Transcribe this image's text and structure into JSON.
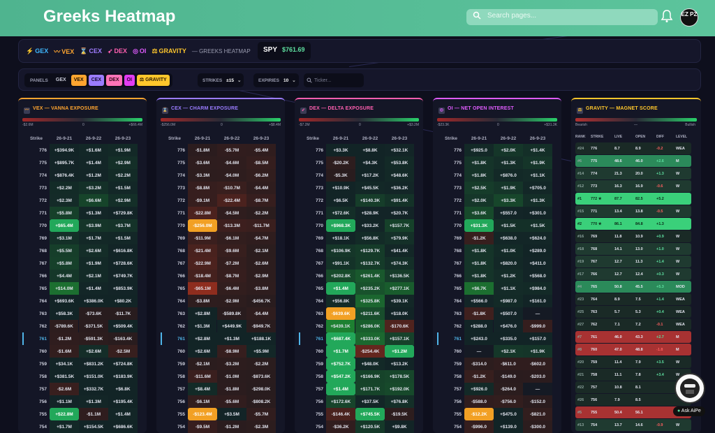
{
  "header": {
    "title": "Greeks Heatmap",
    "search_placeholder": "Search pages...",
    "avatar": "EZ PZ"
  },
  "strip": {
    "chips": [
      {
        "icon": "⚡",
        "label": "GEX",
        "color": "#3fb8ff"
      },
      {
        "icon": "〰",
        "label": "VEX",
        "color": "#ffa530"
      },
      {
        "icon": "⌛",
        "label": "CEX",
        "color": "#a07cff"
      },
      {
        "icon": "➶",
        "label": "DEX",
        "color": "#ff5fb0"
      },
      {
        "icon": "◎",
        "label": "OI",
        "color": "#e05cff"
      },
      {
        "icon": "⚖",
        "label": "GRAVITY",
        "color": "#ffc72c"
      }
    ],
    "suffix": "— GREEKS HEATMAP",
    "ticker": "SPY",
    "price": "$761.69"
  },
  "controls": {
    "panels_label": "PANELS",
    "panel_buttons": [
      {
        "label": "GEX",
        "bg": "transparent",
        "fg": "#c8cad8"
      },
      {
        "label": "VEX",
        "bg": "#ffa530",
        "fg": "#1a1200"
      },
      {
        "label": "CEX",
        "bg": "#9b7cff",
        "fg": "#120a2a"
      },
      {
        "label": "DEX",
        "bg": "#ff74b8",
        "fg": "#2a0818"
      },
      {
        "label": "OI",
        "bg": "#e23cf2",
        "fg": "#2a0030"
      },
      {
        "label": "⚖ GRAVITY",
        "bg": "#ffc72c",
        "fg": "#2a1c00"
      }
    ],
    "strikes_label": "STRIKES",
    "strikes_value": "±15",
    "expiries_label": "EXPIRIES",
    "expiries_value": "10",
    "ticker_placeholder": "Ticker..."
  },
  "strikes": [
    "776",
    "775",
    "774",
    "773",
    "772",
    "771",
    "770",
    "769",
    "768",
    "767",
    "766",
    "765",
    "764",
    "763",
    "762",
    "761",
    "760",
    "759",
    "758",
    "757",
    "756",
    "755",
    "754"
  ],
  "current_strike": "761",
  "panels": [
    {
      "title": "VEX — VANNA EXPOSURE",
      "accent": "#ffa530",
      "icon": "〰",
      "scale": [
        "-$2.6M",
        "0",
        "+$66.4M"
      ],
      "headers": [
        "Strike",
        "26-9-21",
        "26-9-22",
        "26-9-23"
      ],
      "rows": [
        [
          "+$394.9K",
          "+$1.6M",
          "+$1.9M"
        ],
        [
          "+$895.7K",
          "+$1.4M",
          "+$2.9M"
        ],
        [
          "+$876.4K",
          "+$1.2M",
          "+$2.2M"
        ],
        [
          "+$2.2M",
          "+$3.2M",
          "+$1.5M"
        ],
        [
          "+$2.3M",
          "+$6.6M",
          "+$2.9M"
        ],
        [
          "+$5.8M",
          "+$1.3M",
          "+$729.8K"
        ],
        [
          "+$65.4M",
          "+$3.9M",
          "+$3.7M"
        ],
        [
          "+$3.1M",
          "+$1.7M",
          "+$1.5M"
        ],
        [
          "+$5.5M",
          "+$2.6M",
          "+$616.8K"
        ],
        [
          "+$5.8M",
          "+$1.9M",
          "+$728.6K"
        ],
        [
          "+$4.4M",
          "+$2.1M",
          "+$749.7K"
        ],
        [
          "+$14.0M",
          "+$1.4M",
          "+$853.9K"
        ],
        [
          "+$693.6K",
          "+$386.0K",
          "+$80.2K"
        ],
        [
          "+$58.3K",
          "-$73.6K",
          "-$11.7K"
        ],
        [
          "-$789.6K",
          "-$371.5K",
          "+$509.4K"
        ],
        [
          "-$1.2M",
          "-$591.3K",
          "-$163.4K"
        ],
        [
          "-$1.6M",
          "+$2.6M",
          "-$2.5M"
        ],
        [
          "+$34.1K",
          "+$831.2K",
          "+$724.8K"
        ],
        [
          "+$381.5K",
          "+$151.0K",
          "+$183.9K"
        ],
        [
          "-$2.6M",
          "+$332.7K",
          "+$6.8K"
        ],
        [
          "+$1.1M",
          "+$1.3M",
          "+$195.4K"
        ],
        [
          "+$22.8M",
          "-$1.1M",
          "+$1.4M"
        ],
        [
          "+$1.7M",
          "+$154.5K",
          "+$686.6K"
        ]
      ]
    },
    {
      "title": "CEX — CHARM EXPOSURE",
      "accent": "#9b7cff",
      "icon": "⌛",
      "scale": [
        "-$256.0M",
        "0",
        "+$8.4M"
      ],
      "headers": [
        "Strike",
        "26-9-21",
        "26-9-22",
        "26-9-23"
      ],
      "rows": [
        [
          "-$1.8M",
          "-$5.7M",
          "-$5.4M"
        ],
        [
          "-$3.6M",
          "-$4.6M",
          "-$8.5M"
        ],
        [
          "-$3.3M",
          "-$4.0M",
          "-$6.2M"
        ],
        [
          "-$8.8M",
          "-$10.7M",
          "-$4.4M"
        ],
        [
          "-$9.1M",
          "-$22.4M",
          "-$8.7M"
        ],
        [
          "-$22.8M",
          "-$4.5M",
          "-$2.2M"
        ],
        [
          "-$256.0M",
          "-$13.3M",
          "-$11.7M"
        ],
        [
          "-$11.9M",
          "-$6.1M",
          "-$4.7M"
        ],
        [
          "-$21.4M",
          "-$9.6M",
          "-$2.1M"
        ],
        [
          "-$22.9M",
          "-$7.2M",
          "-$2.6M"
        ],
        [
          "-$18.4M",
          "-$8.7M",
          "-$2.9M"
        ],
        [
          "-$65.1M",
          "-$6.4M",
          "-$3.8M"
        ],
        [
          "-$3.8M",
          "-$2.9M",
          "-$456.7K"
        ],
        [
          "+$2.8M",
          "-$589.8K",
          "-$4.4M"
        ],
        [
          "+$1.3M",
          "+$449.9K",
          "-$949.7K"
        ],
        [
          "+$2.8M",
          "+$1.3M",
          "+$188.1K"
        ],
        [
          "+$2.6M",
          "-$8.9M",
          "+$5.9M"
        ],
        [
          "-$2.1M",
          "-$3.2M",
          "-$2.2M"
        ],
        [
          "-$11.6M",
          "-$1.0M",
          "-$873.6K"
        ],
        [
          "+$8.4M",
          "-$1.8M",
          "-$298.0K"
        ],
        [
          "-$6.1M",
          "-$5.6M",
          "-$808.2K"
        ],
        [
          "-$123.4M",
          "+$3.5M",
          "-$5.7M"
        ],
        [
          "-$9.5M",
          "-$1.2M",
          "-$2.3M"
        ]
      ]
    },
    {
      "title": "DEX — DELTA EXPOSURE",
      "accent": "#ff5fb0",
      "icon": "➶",
      "scale": [
        "-$7.2M",
        "0",
        "+$3.2M"
      ],
      "headers": [
        "Strike",
        "26-9-21",
        "26-9-22",
        "26-9-23"
      ],
      "rows": [
        [
          "+$3.3K",
          "+$8.8K",
          "+$32.1K"
        ],
        [
          "-$20.2K",
          "+$4.3K",
          "+$53.8K"
        ],
        [
          "-$5.3K",
          "+$17.2K",
          "+$48.6K"
        ],
        [
          "+$10.9K",
          "+$45.5K",
          "+$36.2K"
        ],
        [
          "+$6.5K",
          "+$140.3K",
          "+$91.4K"
        ],
        [
          "+$72.6K",
          "+$28.9K",
          "+$20.7K"
        ],
        [
          "+$968.3K",
          "+$33.2K",
          "+$157.7K"
        ],
        [
          "+$18.1K",
          "+$56.8K",
          "+$79.9K"
        ],
        [
          "+$106.9K",
          "+$129.7K",
          "+$41.4K"
        ],
        [
          "+$91.1K",
          "+$132.7K",
          "+$74.3K"
        ],
        [
          "+$202.8K",
          "+$261.4K",
          "+$136.5K"
        ],
        [
          "+$1.4M",
          "+$235.2K",
          "+$277.1K"
        ],
        [
          "+$56.8K",
          "+$325.8K",
          "+$39.1K"
        ],
        [
          "-$639.6K",
          "+$211.6K",
          "+$18.0K"
        ],
        [
          "+$439.1K",
          "+$286.0K",
          "-$170.6K"
        ],
        [
          "+$687.4K",
          "+$333.0K",
          "+$157.1K"
        ],
        [
          "+$1.7M",
          "-$254.4K",
          "+$1.2M"
        ],
        [
          "+$752.7K",
          "+$48.0K",
          "+$13.2K"
        ],
        [
          "+$547.2K",
          "+$166.9K",
          "+$178.5K"
        ],
        [
          "+$1.4M",
          "+$171.7K",
          "+$192.0K"
        ],
        [
          "+$172.6K",
          "+$37.5K",
          "+$76.8K"
        ],
        [
          "-$146.4K",
          "+$745.5K",
          "-$19.5K"
        ],
        [
          "-$36.2K",
          "+$120.5K",
          "+$9.8K"
        ]
      ]
    },
    {
      "title": "OI — NET OPEN INTEREST",
      "accent": "#e05cff",
      "icon": "◎",
      "scale": [
        "-$23.3K",
        "0",
        "+$31.3K"
      ],
      "headers": [
        "Strike",
        "26-9-21",
        "26-9-22",
        "26-9-23"
      ],
      "rows": [
        [
          "+$925.0",
          "+$2.0K",
          "+$1.4K"
        ],
        [
          "+$1.8K",
          "+$1.3K",
          "+$1.9K"
        ],
        [
          "+$1.8K",
          "+$876.0",
          "+$1.1K"
        ],
        [
          "+$2.5K",
          "+$1.9K",
          "+$705.0"
        ],
        [
          "+$2.0K",
          "+$3.3K",
          "+$1.3K"
        ],
        [
          "+$3.6K",
          "+$557.0",
          "+$301.0"
        ],
        [
          "+$31.3K",
          "+$1.5K",
          "+$1.5K"
        ],
        [
          "-$1.2K",
          "+$638.0",
          "+$624.0"
        ],
        [
          "+$1.8K",
          "+$1.0K",
          "+$289.0"
        ],
        [
          "+$1.8K",
          "+$820.0",
          "+$411.0"
        ],
        [
          "+$1.8K",
          "+$1.2K",
          "+$568.0"
        ],
        [
          "+$6.7K",
          "+$1.1K",
          "+$984.0"
        ],
        [
          "+$566.0",
          "+$987.0",
          "+$161.0"
        ],
        [
          "-$1.8K",
          "+$507.0",
          "—"
        ],
        [
          "+$288.0",
          "+$476.0",
          "-$999.0"
        ],
        [
          "+$243.0",
          "+$335.0",
          "+$157.0"
        ],
        [
          "—",
          "+$2.1K",
          "+$1.9K"
        ],
        [
          "-$314.0",
          "-$611.0",
          "-$602.0"
        ],
        [
          "-$1.2K",
          "-$149.0",
          "-$203.0"
        ],
        [
          "+$926.0",
          "-$264.0",
          "—"
        ],
        [
          "-$588.0",
          "-$756.0",
          "-$152.0"
        ],
        [
          "-$12.2K",
          "+$475.0",
          "-$821.0"
        ],
        [
          "-$996.0",
          "+$139.0",
          "-$300.0"
        ]
      ]
    }
  ],
  "gravity": {
    "title": "GRAVITY — MAGNET SCORE",
    "accent": "#ffc72c",
    "icon": "⚖",
    "scale": [
      "Bearish",
      "—",
      "Bullish"
    ],
    "headers": [
      "RANK",
      "STRIKE",
      "LIVE",
      "OPEN",
      "DIFF",
      "LEVEL"
    ],
    "rows": [
      [
        "#24",
        "776",
        "8.7",
        "8.9",
        "-0.2",
        "WEA"
      ],
      [
        "#6",
        "775",
        "48.6",
        "46.0",
        "+2.6",
        "M"
      ],
      [
        "#14",
        "774",
        "21.3",
        "20.0",
        "+1.3",
        "W"
      ],
      [
        "#12",
        "773",
        "16.3",
        "16.9",
        "-0.6",
        "W"
      ],
      [
        "#1",
        "772 ★",
        "87.7",
        "82.5",
        "+5.2",
        ""
      ],
      [
        "#15",
        "771",
        "13.4",
        "13.8",
        "-0.5",
        "W"
      ],
      [
        "#2",
        "770 ★",
        "86.1",
        "84.8",
        "+1.3",
        ""
      ],
      [
        "#16",
        "769",
        "11.8",
        "10.9",
        "+0.9",
        "W"
      ],
      [
        "#18",
        "768",
        "14.1",
        "13.0",
        "+1.0",
        "W"
      ],
      [
        "#19",
        "767",
        "12.7",
        "11.3",
        "+1.4",
        "W"
      ],
      [
        "#17",
        "766",
        "12.7",
        "12.4",
        "+0.3",
        "W"
      ],
      [
        "#4",
        "765",
        "50.8",
        "45.5",
        "+5.3",
        "MOD"
      ],
      [
        "#23",
        "764",
        "8.9",
        "7.5",
        "+1.4",
        "WEA"
      ],
      [
        "#25",
        "763",
        "5.7",
        "5.3",
        "+0.4",
        "WEA"
      ],
      [
        "#27",
        "762",
        "7.1",
        "7.2",
        "-0.1",
        "WEA"
      ],
      [
        "#7",
        "761",
        "46.0",
        "43.3",
        "+2.7",
        "M"
      ],
      [
        "#8",
        "760",
        "47.0",
        "48.8",
        "-1.8",
        "M"
      ],
      [
        "#20",
        "759",
        "11.4",
        "7.9",
        "+3.5",
        "W"
      ],
      [
        "#21",
        "758",
        "11.1",
        "7.8",
        "+3.4",
        "W"
      ],
      [
        "#22",
        "757",
        "10.8",
        "8.1",
        "",
        ""
      ],
      [
        "#26",
        "756",
        "7.9",
        "8.5",
        "",
        ""
      ],
      [
        "#5",
        "755",
        "50.4",
        "56.1",
        "",
        ""
      ],
      [
        "#13",
        "754",
        "13.7",
        "14.6",
        "-0.9",
        "W"
      ]
    ]
  },
  "ask_button": "Ask AiPe"
}
